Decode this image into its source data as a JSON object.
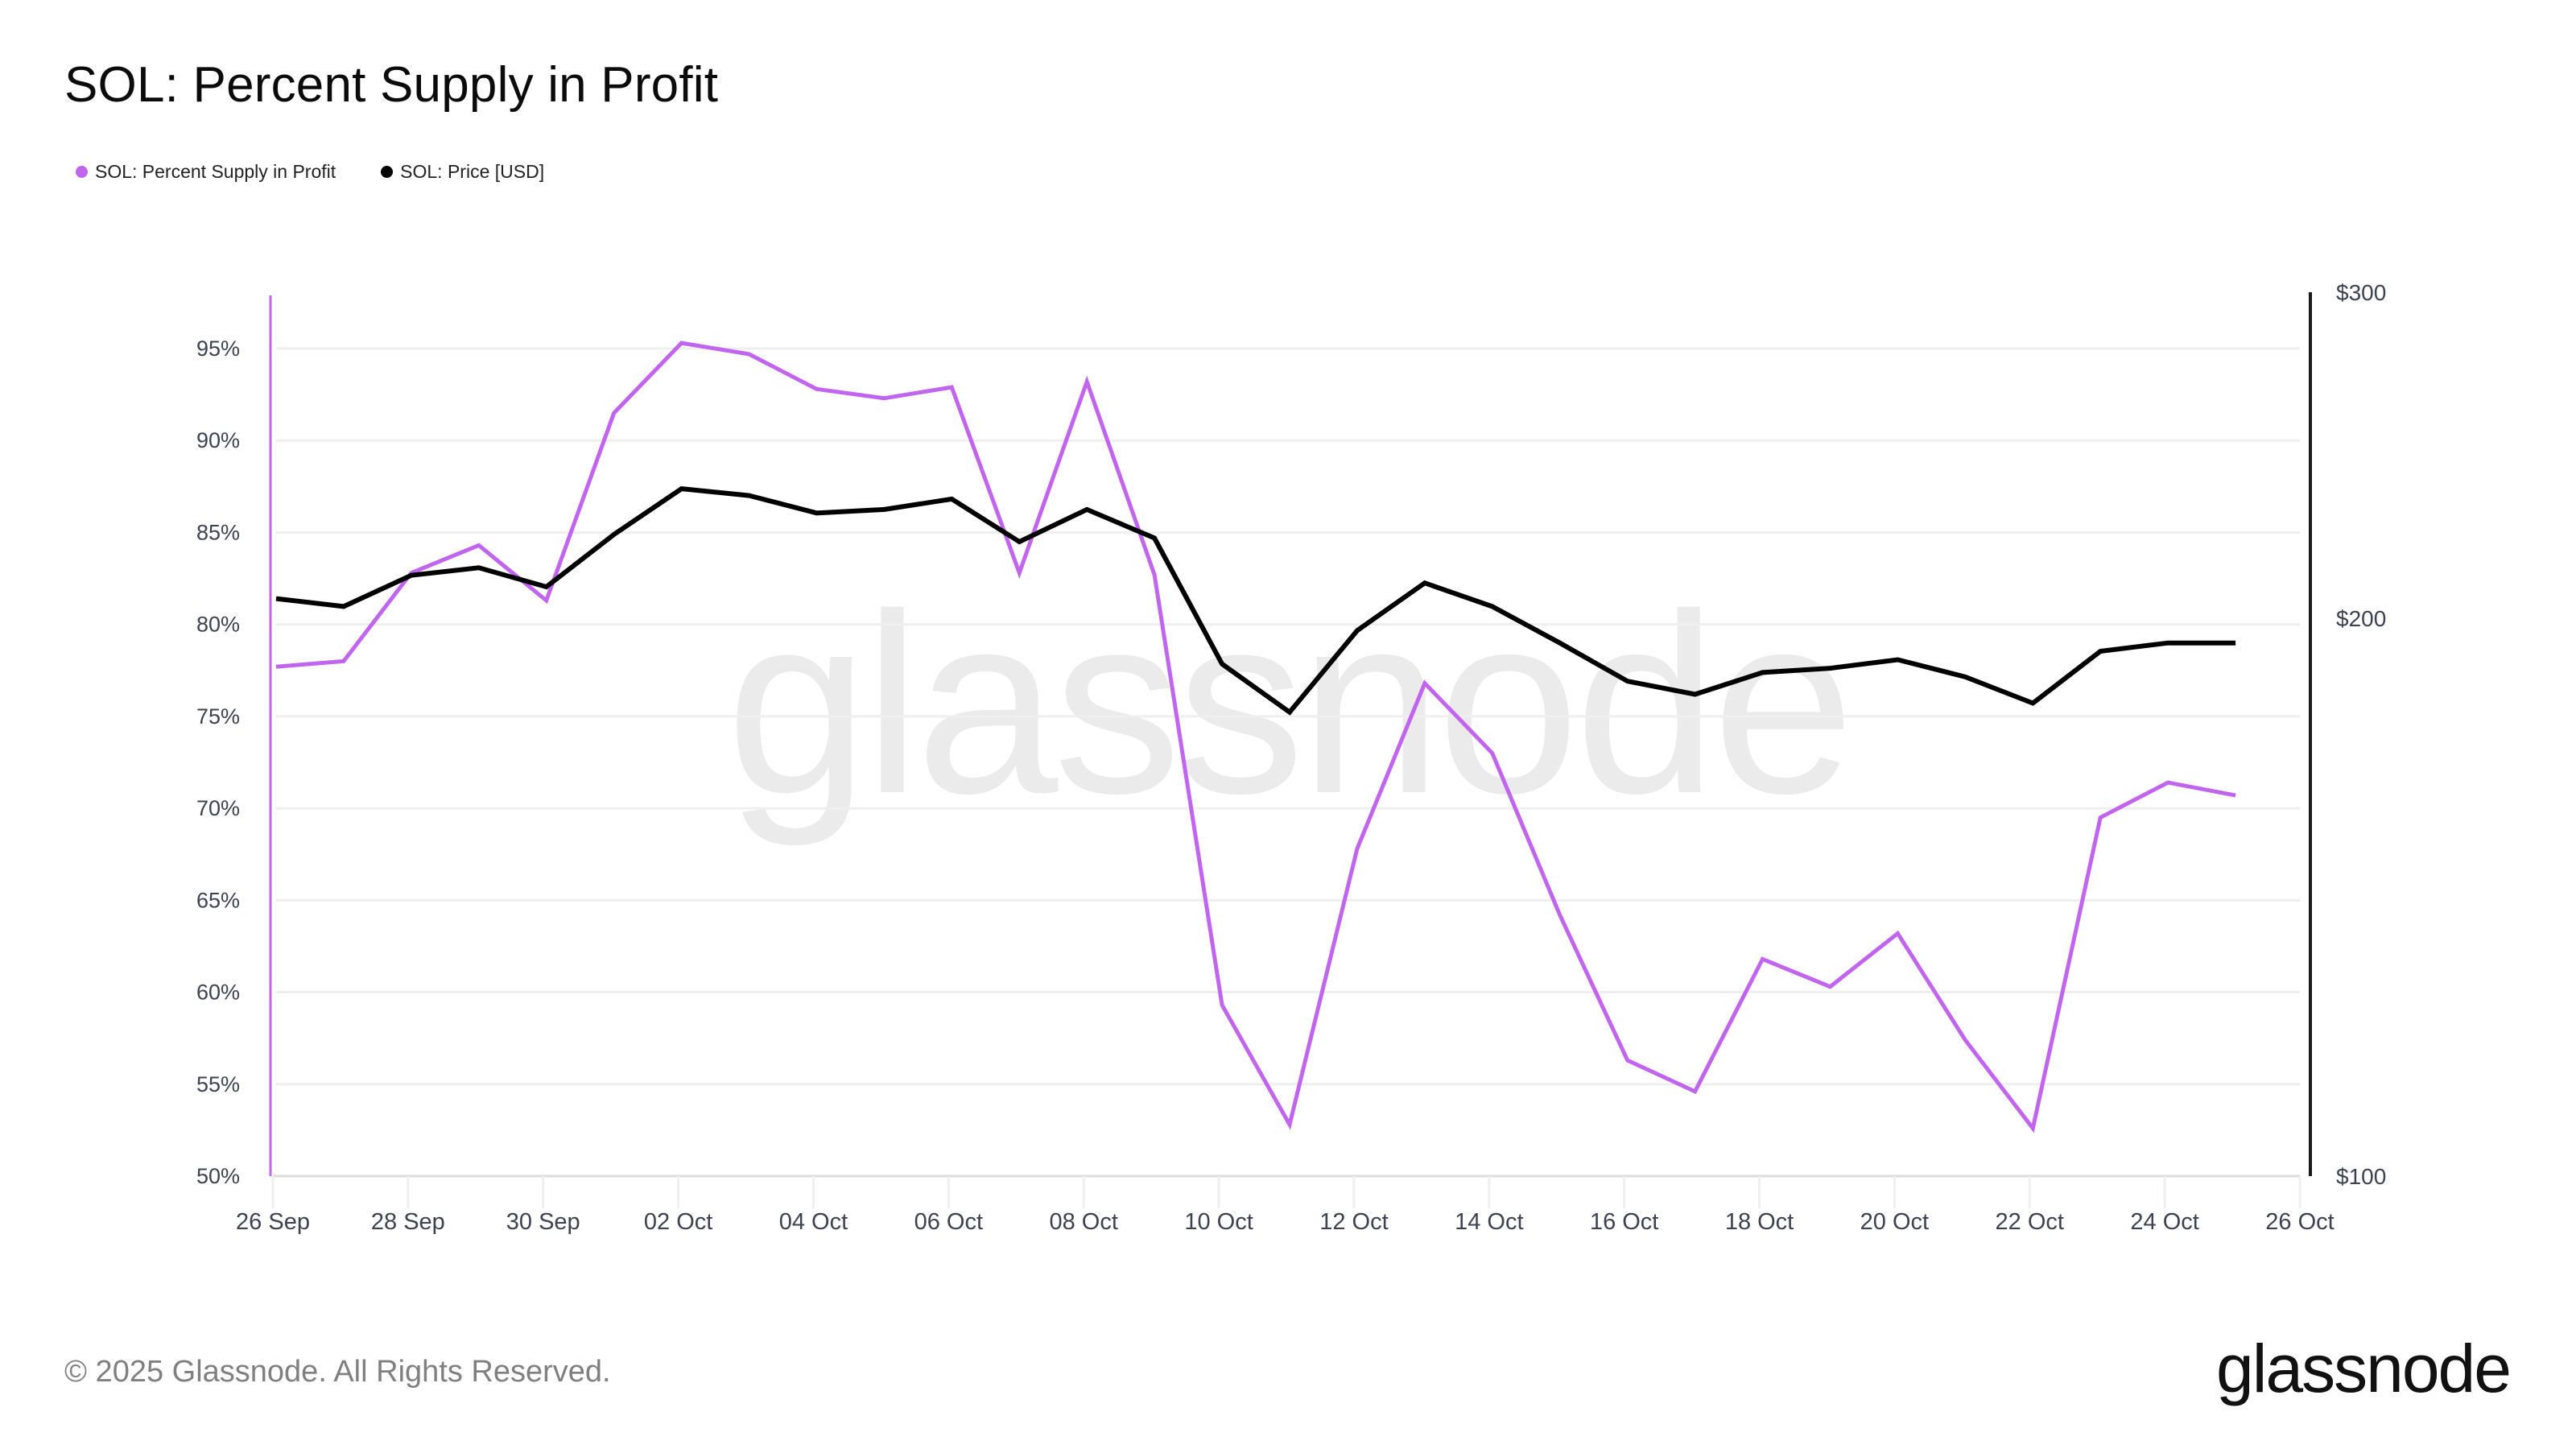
{
  "title": "SOL: Percent Supply in Profit",
  "legend": [
    {
      "label": "SOL: Percent Supply in Profit",
      "color": "#c165ee"
    },
    {
      "label": "SOL: Price [USD]",
      "color": "#000000"
    }
  ],
  "watermark": "glassnode",
  "footer": {
    "copyright": "© 2025 Glassnode. All Rights Reserved.",
    "logo": "glassnode"
  },
  "chart_data": {
    "type": "line",
    "title": "SOL: Percent Supply in Profit",
    "xlabel": "",
    "ylabel_left": "Percent Supply in Profit",
    "ylabel_right": "Price [USD]",
    "x": [
      "26 Sep",
      "27 Sep",
      "28 Sep",
      "29 Sep",
      "30 Sep",
      "01 Oct",
      "02 Oct",
      "03 Oct",
      "04 Oct",
      "05 Oct",
      "06 Oct",
      "07 Oct",
      "08 Oct",
      "09 Oct",
      "10 Oct",
      "11 Oct",
      "12 Oct",
      "13 Oct",
      "14 Oct",
      "15 Oct",
      "16 Oct",
      "17 Oct",
      "18 Oct",
      "19 Oct",
      "20 Oct",
      "21 Oct",
      "22 Oct",
      "23 Oct",
      "24 Oct",
      "25 Oct"
    ],
    "x_tick_labels": [
      "26 Sep",
      "28 Sep",
      "30 Sep",
      "02 Oct",
      "04 Oct",
      "06 Oct",
      "08 Oct",
      "10 Oct",
      "12 Oct",
      "14 Oct",
      "16 Oct",
      "18 Oct",
      "20 Oct",
      "22 Oct",
      "24 Oct",
      "26 Oct"
    ],
    "series": [
      {
        "name": "SOL: Percent Supply in Profit",
        "axis": "left",
        "color": "#c165ee",
        "unit": "%",
        "values": [
          77.7,
          78.0,
          82.8,
          84.3,
          81.3,
          91.5,
          95.3,
          94.7,
          92.8,
          92.3,
          92.9,
          82.8,
          93.2,
          82.7,
          59.3,
          52.8,
          67.8,
          76.8,
          73.0,
          64.2,
          56.3,
          54.6,
          61.8,
          60.3,
          63.2,
          57.4,
          52.6,
          69.5,
          71.4,
          70.7
        ]
      },
      {
        "name": "SOL: Price [USD]",
        "axis": "right",
        "color": "#000000",
        "unit": "USD",
        "values": [
          205,
          203,
          211,
          213,
          208,
          222,
          235,
          233,
          228,
          229,
          232,
          220,
          229,
          221,
          189,
          178,
          197,
          209,
          203,
          194,
          185,
          182,
          187,
          188,
          190,
          186,
          180,
          192,
          194,
          194
        ]
      }
    ],
    "y_left": {
      "ticks": [
        "50%",
        "55%",
        "60%",
        "65%",
        "70%",
        "75%",
        "80%",
        "85%",
        "90%",
        "95%"
      ],
      "range": [
        50,
        98
      ],
      "scale": "linear"
    },
    "y_right": {
      "ticks": [
        "$100",
        "$200",
        "$300"
      ],
      "range": [
        100,
        300
      ],
      "scale": "log"
    },
    "grid": true,
    "legend_position": "top-left"
  }
}
